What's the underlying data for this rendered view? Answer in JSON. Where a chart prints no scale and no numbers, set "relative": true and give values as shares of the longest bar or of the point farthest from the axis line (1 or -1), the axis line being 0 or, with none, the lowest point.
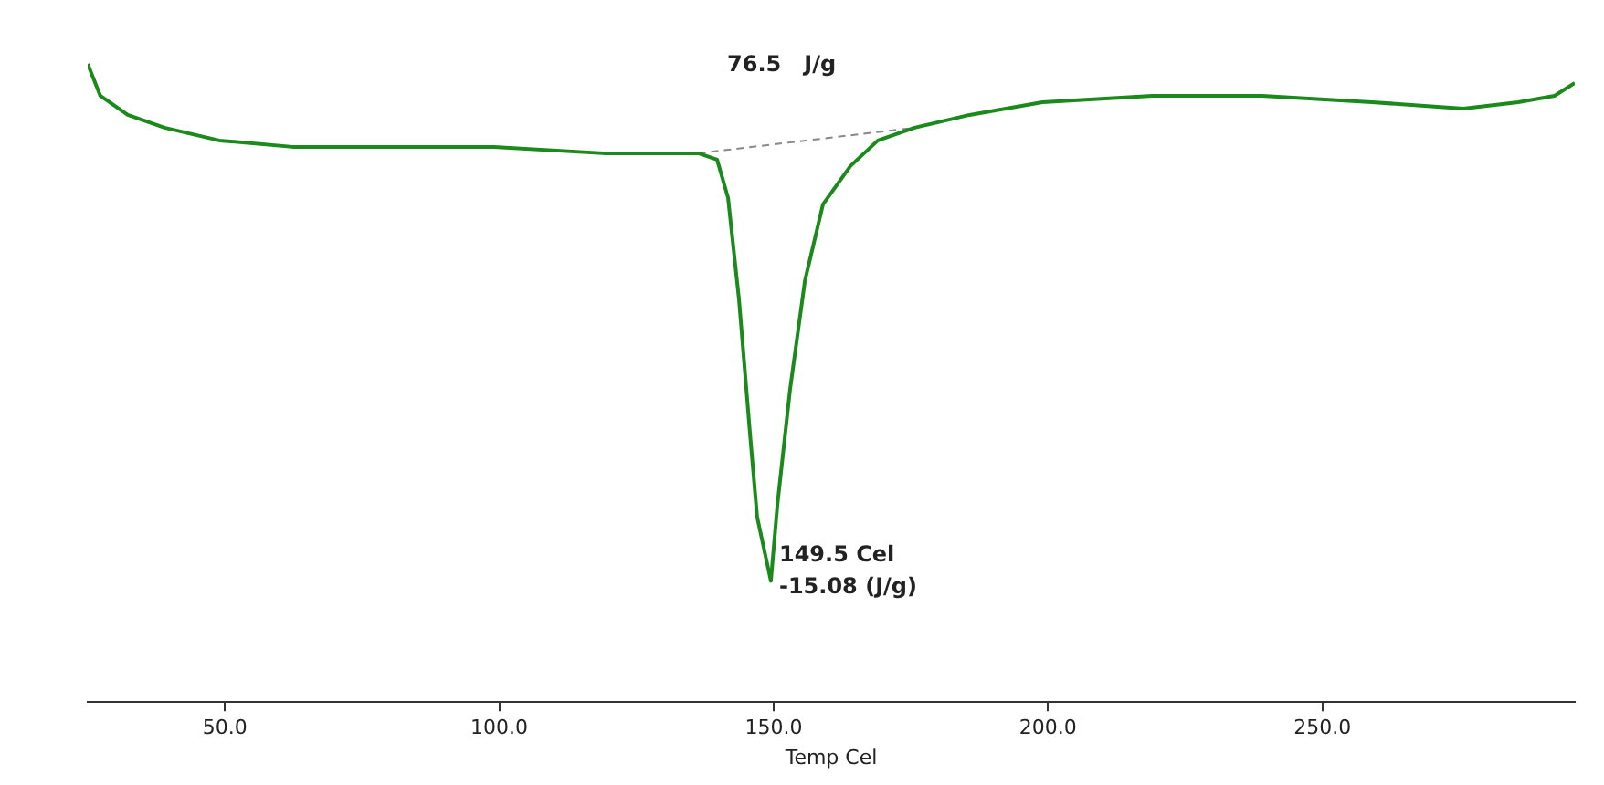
{
  "chart_data": {
    "type": "line",
    "xlabel": "Temp Cel",
    "relative": true,
    "xlim": [
      25,
      296
    ],
    "xticks": [
      {
        "value": 50,
        "label": "50.0"
      },
      {
        "value": 100,
        "label": "100.0"
      },
      {
        "value": 150,
        "label": "150.0"
      },
      {
        "value": 200,
        "label": "200.0"
      },
      {
        "value": 250,
        "label": "250.0"
      }
    ],
    "series": [
      {
        "color": "#1a8a1a",
        "line_style": "solid",
        "x": [
          25,
          27.3,
          32.3,
          39,
          49,
          62.3,
          79,
          99,
          119,
          136.3,
          139.7,
          141.7,
          143.7,
          145.7,
          147,
          149.5,
          150.7,
          153,
          155.7,
          159,
          164,
          169,
          175.7,
          185.7,
          199,
          219,
          239,
          259,
          275.7,
          285.7,
          292.3,
          296
        ],
        "values": [
          1.0,
          0.95,
          0.92,
          0.9,
          0.88,
          0.87,
          0.87,
          0.87,
          0.86,
          0.86,
          0.85,
          0.79,
          0.63,
          0.42,
          0.29,
          0.19,
          0.31,
          0.49,
          0.66,
          0.78,
          0.84,
          0.88,
          0.9,
          0.92,
          0.94,
          0.95,
          0.95,
          0.94,
          0.93,
          0.94,
          0.95,
          0.97
        ]
      },
      {
        "color": "#888888",
        "line_style": "dashed",
        "x": [
          136.3,
          175.7
        ],
        "values": [
          0.86,
          0.9
        ]
      }
    ],
    "annotations": [
      "76.5   J/g",
      {
        "text": "149.5 Cel",
        "x": 151,
        "y": 0.23
      },
      {
        "text": "-15.08 (J/g)",
        "x": 151,
        "y": 0.18
      }
    ],
    "grid": false,
    "legend": false,
    "marker": "none"
  }
}
